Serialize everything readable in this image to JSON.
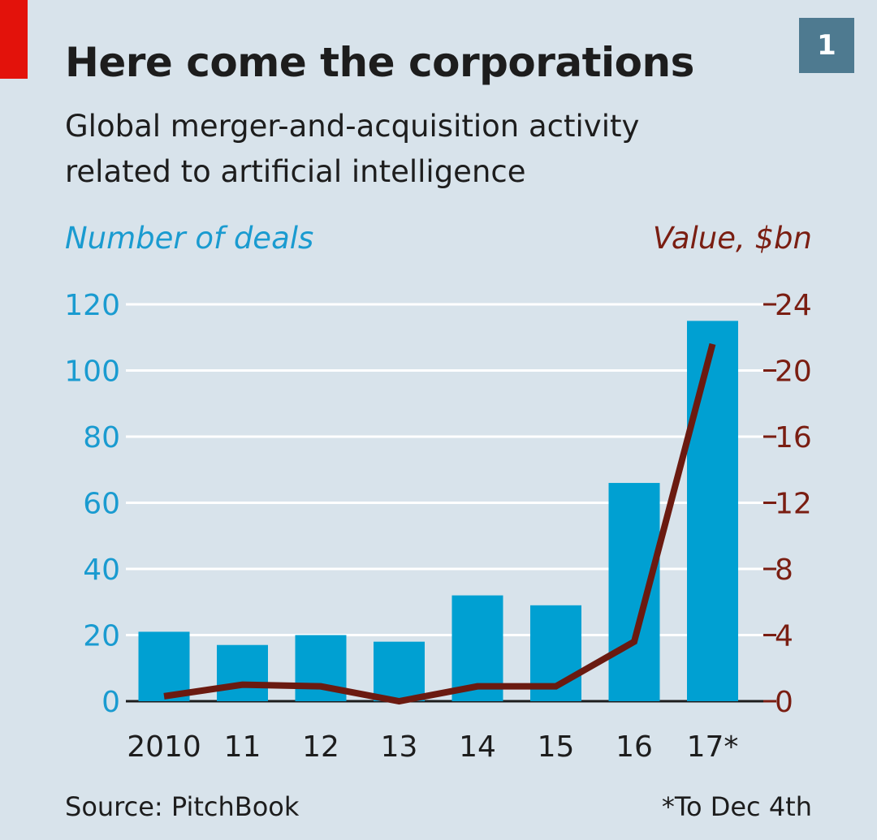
{
  "header": {
    "title": "Here come the corporations",
    "subtitle": "Global merger-and-acquisition activity related to artificial intelligence",
    "chart_number": "1"
  },
  "footer": {
    "source": "Source: PitchBook",
    "footnote": "*To Dec 4th"
  },
  "colors": {
    "background": "#d8e3eb",
    "bars": "#00a0d2",
    "line": "#6b1a10",
    "left_axis": "#1a9bd0",
    "right_axis": "#7a1e12",
    "grid": "#ffffff",
    "accent_red": "#e3120b"
  },
  "chart_data": {
    "type": "bar",
    "title": "Here come the corporations",
    "subtitle": "Global merger-and-acquisition activity related to artificial intelligence",
    "categories": [
      "2010",
      "11",
      "12",
      "13",
      "14",
      "15",
      "16",
      "17*"
    ],
    "series": [
      {
        "name": "Number of deals",
        "type": "bar",
        "axis": "left",
        "values": [
          21,
          17,
          20,
          18,
          32,
          29,
          66,
          115
        ]
      },
      {
        "name": "Value, $bn",
        "type": "line",
        "axis": "right",
        "values": [
          0.3,
          1.0,
          0.9,
          0.0,
          0.9,
          0.9,
          3.6,
          21.6
        ]
      }
    ],
    "ylabel_left": "Number of deals",
    "ylabel_right": "Value, $bn",
    "ylim_left": [
      0,
      120
    ],
    "ylim_right": [
      0,
      24
    ],
    "yticks_left": [
      0,
      20,
      40,
      60,
      80,
      100,
      120
    ],
    "yticks_right": [
      0,
      4,
      8,
      12,
      16,
      20,
      24
    ],
    "grid": true,
    "legend": "axis titles top-left and top-right"
  }
}
